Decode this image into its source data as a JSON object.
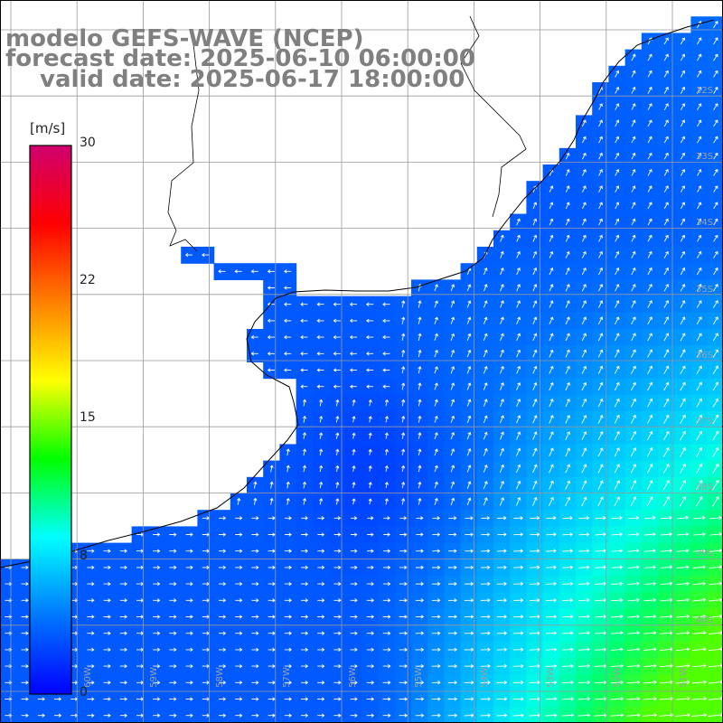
{
  "titles": {
    "model": "modelo GEFS-WAVE (NCEP)",
    "forecast": "forecast date: 2025-06-10 06:00:00",
    "valid": "valid date: 2025-06-17 18:00:00"
  },
  "colorbar": {
    "unit": "[m/s]",
    "ticks": [
      "30",
      "22",
      "15",
      "8",
      "0"
    ],
    "colors": [
      "#0000ff",
      "#0077ff",
      "#00ffff",
      "#00ff00",
      "#ffff00",
      "#ff8000",
      "#ff0000",
      "#d0006f"
    ]
  },
  "axes": {
    "lon_labels": [
      "60W",
      "59W",
      "58W",
      "57W",
      "56W",
      "55W",
      "54W",
      "53W",
      "52W",
      "51W"
    ],
    "lat_labels": [
      "32S",
      "33S",
      "34S",
      "35S",
      "36S",
      "37S",
      "38S",
      "39S",
      "40S"
    ]
  },
  "colors": {
    "land": "#ffffff",
    "grid": "#9a9a9a",
    "coast": "#000000",
    "arrow": "#ffffff",
    "title": "#808080"
  }
}
